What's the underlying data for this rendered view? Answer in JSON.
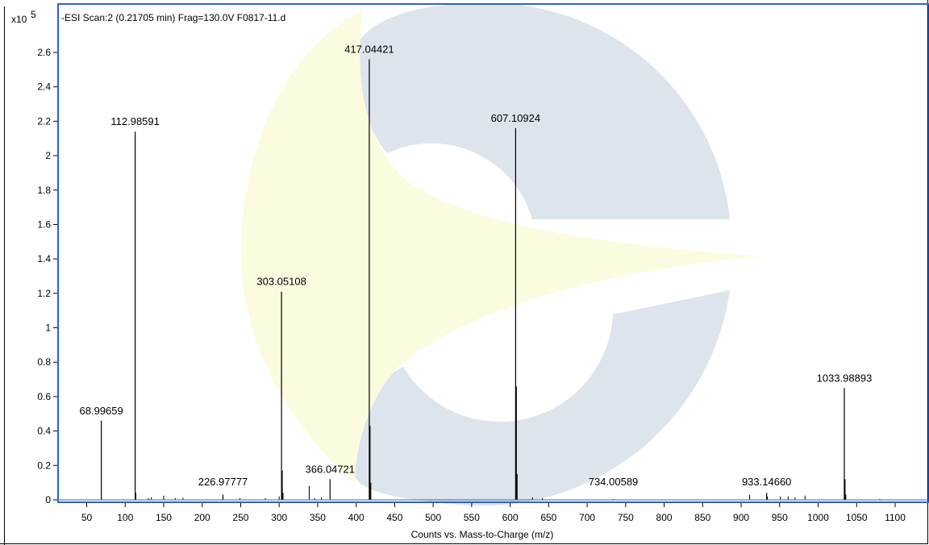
{
  "chart_data": {
    "type": "line",
    "title": "-ESI Scan:2 (0.21705 min) Frag=130.0V F0817-11.d",
    "y_multiplier_label": "x10",
    "y_multiplier_exp": "5",
    "xlabel": "Counts vs. Mass-to-Charge (m/z)",
    "ylabel": "",
    "xlim": [
      15,
      1150
    ],
    "ylim": [
      0,
      2.7
    ],
    "x_ticks": [
      50,
      100,
      150,
      200,
      250,
      300,
      350,
      400,
      450,
      500,
      550,
      600,
      650,
      700,
      750,
      800,
      850,
      900,
      950,
      1000,
      1050,
      1100
    ],
    "y_ticks": [
      {
        "value": 0,
        "label": "0"
      },
      {
        "value": 0.2,
        "label": "0.2"
      },
      {
        "value": 0.4,
        "label": "0.4"
      },
      {
        "value": 0.6,
        "label": "0.6"
      },
      {
        "value": 0.8,
        "label": "0.8"
      },
      {
        "value": 1.0,
        "label": "1"
      },
      {
        "value": 1.2,
        "label": "1.2"
      },
      {
        "value": 1.4,
        "label": "1.4"
      },
      {
        "value": 1.6,
        "label": "1.6"
      },
      {
        "value": 1.8,
        "label": "1.8"
      },
      {
        "value": 2.0,
        "label": "2"
      },
      {
        "value": 2.2,
        "label": "2.2"
      },
      {
        "value": 2.4,
        "label": "2.4"
      },
      {
        "value": 2.6,
        "label": "2.6"
      }
    ],
    "grid": false,
    "peaks": [
      {
        "mz": 68.99659,
        "intensity": 0.46,
        "label": "68.99659"
      },
      {
        "mz": 112.98591,
        "intensity": 2.14,
        "label": "112.98591"
      },
      {
        "mz": 226.97777,
        "intensity": 0.03,
        "label": "226.97777"
      },
      {
        "mz": 303.05108,
        "intensity": 1.21,
        "label": "303.05108"
      },
      {
        "mz": 366.04721,
        "intensity": 0.12,
        "label": "366.04721"
      },
      {
        "mz": 417.04421,
        "intensity": 2.56,
        "label": "417.04421"
      },
      {
        "mz": 607.10924,
        "intensity": 2.16,
        "label": "607.10924"
      },
      {
        "mz": 734.00589,
        "intensity": 0.005,
        "label": "734.00589"
      },
      {
        "mz": 933.1466,
        "intensity": 0.04,
        "label": "933.14660"
      },
      {
        "mz": 1033.98893,
        "intensity": 0.65,
        "label": "1033.98893"
      }
    ],
    "minor_peaks": [
      {
        "mz": 113.9,
        "intensity": 0.04
      },
      {
        "mz": 130,
        "intensity": 0.01
      },
      {
        "mz": 134,
        "intensity": 0.015
      },
      {
        "mz": 150,
        "intensity": 0.025
      },
      {
        "mz": 165,
        "intensity": 0.01
      },
      {
        "mz": 175,
        "intensity": 0.012
      },
      {
        "mz": 249,
        "intensity": 0.01
      },
      {
        "mz": 282,
        "intensity": 0.01
      },
      {
        "mz": 300,
        "intensity": 0.02
      },
      {
        "mz": 304.05,
        "intensity": 0.17
      },
      {
        "mz": 305.05,
        "intensity": 0.04
      },
      {
        "mz": 339,
        "intensity": 0.08
      },
      {
        "mz": 346,
        "intensity": 0.01
      },
      {
        "mz": 355,
        "intensity": 0.015
      },
      {
        "mz": 418.04,
        "intensity": 0.43
      },
      {
        "mz": 419.04,
        "intensity": 0.1
      },
      {
        "mz": 608.11,
        "intensity": 0.66
      },
      {
        "mz": 609.11,
        "intensity": 0.15
      },
      {
        "mz": 629,
        "intensity": 0.015
      },
      {
        "mz": 642,
        "intensity": 0.01
      },
      {
        "mz": 911,
        "intensity": 0.03
      },
      {
        "mz": 934.15,
        "intensity": 0.02
      },
      {
        "mz": 951,
        "intensity": 0.02
      },
      {
        "mz": 961,
        "intensity": 0.02
      },
      {
        "mz": 970,
        "intensity": 0.015
      },
      {
        "mz": 983,
        "intensity": 0.025
      },
      {
        "mz": 1034.99,
        "intensity": 0.12
      },
      {
        "mz": 1035.99,
        "intensity": 0.03
      },
      {
        "mz": 1080,
        "intensity": 0.005
      }
    ]
  },
  "colors": {
    "plot_frame": "#2e62c8",
    "watermark_gray": "#dde4ec",
    "watermark_yellow": "#fbfbe0",
    "signal": "#000000"
  }
}
